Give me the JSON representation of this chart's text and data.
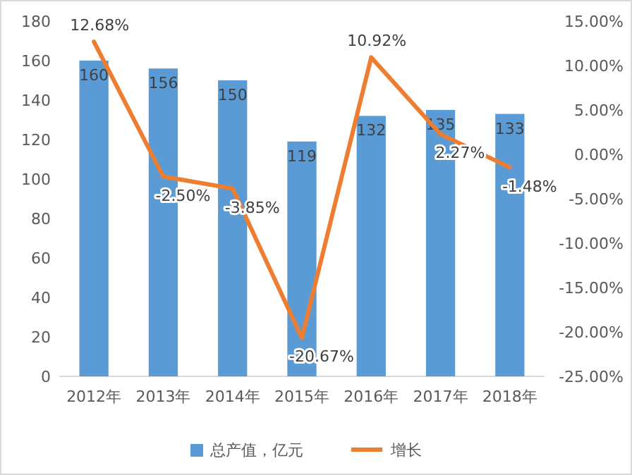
{
  "chart_data": {
    "type": "bar",
    "categories": [
      "2012年",
      "2013年",
      "2014年",
      "2015年",
      "2016年",
      "2017年",
      "2018年"
    ],
    "series": [
      {
        "name": "总产值，亿元",
        "color": "#5b9bd5",
        "values": [
          160,
          156,
          150,
          119,
          132,
          135,
          133
        ],
        "value_labels": [
          "160",
          "156",
          "150",
          "119",
          "132",
          "135",
          "133"
        ]
      },
      {
        "name": "增长",
        "type": "line",
        "axis": "y2",
        "color": "#ed7d31",
        "values": [
          12.68,
          -2.5,
          -3.85,
          -20.67,
          10.92,
          2.27,
          -1.48
        ],
        "value_labels": [
          "12.68%",
          "-2.50%",
          "-3.85%",
          "-20.67%",
          "10.92%",
          "2.27%",
          "-1.48%"
        ]
      }
    ],
    "ylim": [
      0,
      180
    ],
    "yticks": [
      0,
      20,
      40,
      60,
      80,
      100,
      120,
      140,
      160,
      180
    ],
    "y2lim": [
      -25,
      15
    ],
    "y2ticks": [
      {
        "value": -25,
        "label": "-25.00%"
      },
      {
        "value": -20,
        "label": "-20.00%"
      },
      {
        "value": -15,
        "label": "-15.00%"
      },
      {
        "value": -10,
        "label": "-10.00%"
      },
      {
        "value": -5,
        "label": "-5.00%"
      },
      {
        "value": 0,
        "label": "0.00%"
      },
      {
        "value": 5,
        "label": "5.00%"
      },
      {
        "value": 10,
        "label": "10.00%"
      },
      {
        "value": 15,
        "label": "15.00%"
      }
    ],
    "grid": false,
    "legend": "bottom",
    "marker": "none",
    "line_style": "solid"
  }
}
